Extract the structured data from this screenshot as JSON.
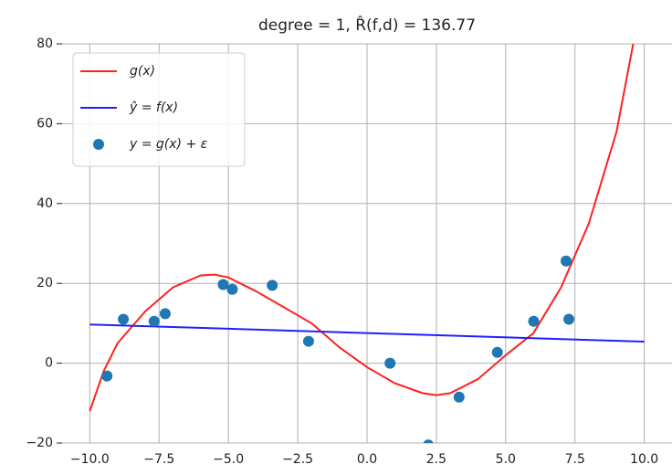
{
  "chart_data": {
    "type": "line",
    "title": "degree = 1, R̂(f,d) = 136.77",
    "xlim": [
      -11,
      11
    ],
    "ylim": [
      -20,
      80
    ],
    "xticks": [
      {
        "value": -10,
        "label": "−10.0"
      },
      {
        "value": -7.5,
        "label": "−7.5"
      },
      {
        "value": -5,
        "label": "−5.0"
      },
      {
        "value": -2.5,
        "label": "−2.5"
      },
      {
        "value": 0,
        "label": "0.0"
      },
      {
        "value": 2.5,
        "label": "2.5"
      },
      {
        "value": 5,
        "label": "5.0"
      },
      {
        "value": 7.5,
        "label": "7.5"
      },
      {
        "value": 10,
        "label": "10.0"
      }
    ],
    "yticks": [
      {
        "value": -20,
        "label": "−20"
      },
      0,
      20,
      40,
      60,
      80
    ],
    "grid": true,
    "legend": "upper-left",
    "series": [
      {
        "name": "g(x)",
        "type": "line",
        "color": "#ff2020",
        "x": [
          -10,
          -9.5,
          -9,
          -8,
          -7,
          -6,
          -5.5,
          -5,
          -4,
          -3,
          -2,
          -1,
          0,
          1,
          2,
          2.5,
          3,
          4,
          5,
          6,
          7,
          8,
          9,
          9.6
        ],
        "values": [
          -12,
          -2,
          5,
          13,
          19,
          22,
          22.2,
          21.5,
          18,
          14,
          10,
          4,
          -1,
          -5,
          -7.5,
          -8,
          -7.5,
          -4,
          2,
          7.5,
          19,
          35,
          58,
          80
        ]
      },
      {
        "name": "ŷ = f(x)",
        "type": "line",
        "color": "#2020ff",
        "x": [
          -10,
          10
        ],
        "values": [
          9.7,
          5.4
        ]
      },
      {
        "name": "y = g(x) + ε",
        "type": "scatter",
        "color": "#1f77b4",
        "x": [
          -9.38,
          -8.79,
          -7.68,
          -7.28,
          -5.19,
          -4.86,
          -3.42,
          -2.11,
          0.83,
          2.21,
          3.32,
          4.7,
          6.01,
          7.18,
          7.28
        ],
        "values": [
          -3.2,
          11,
          10.5,
          12.4,
          19.7,
          18.5,
          19.5,
          5.5,
          0,
          -20.5,
          -8.5,
          2.7,
          10.5,
          25.6,
          11
        ]
      }
    ]
  }
}
